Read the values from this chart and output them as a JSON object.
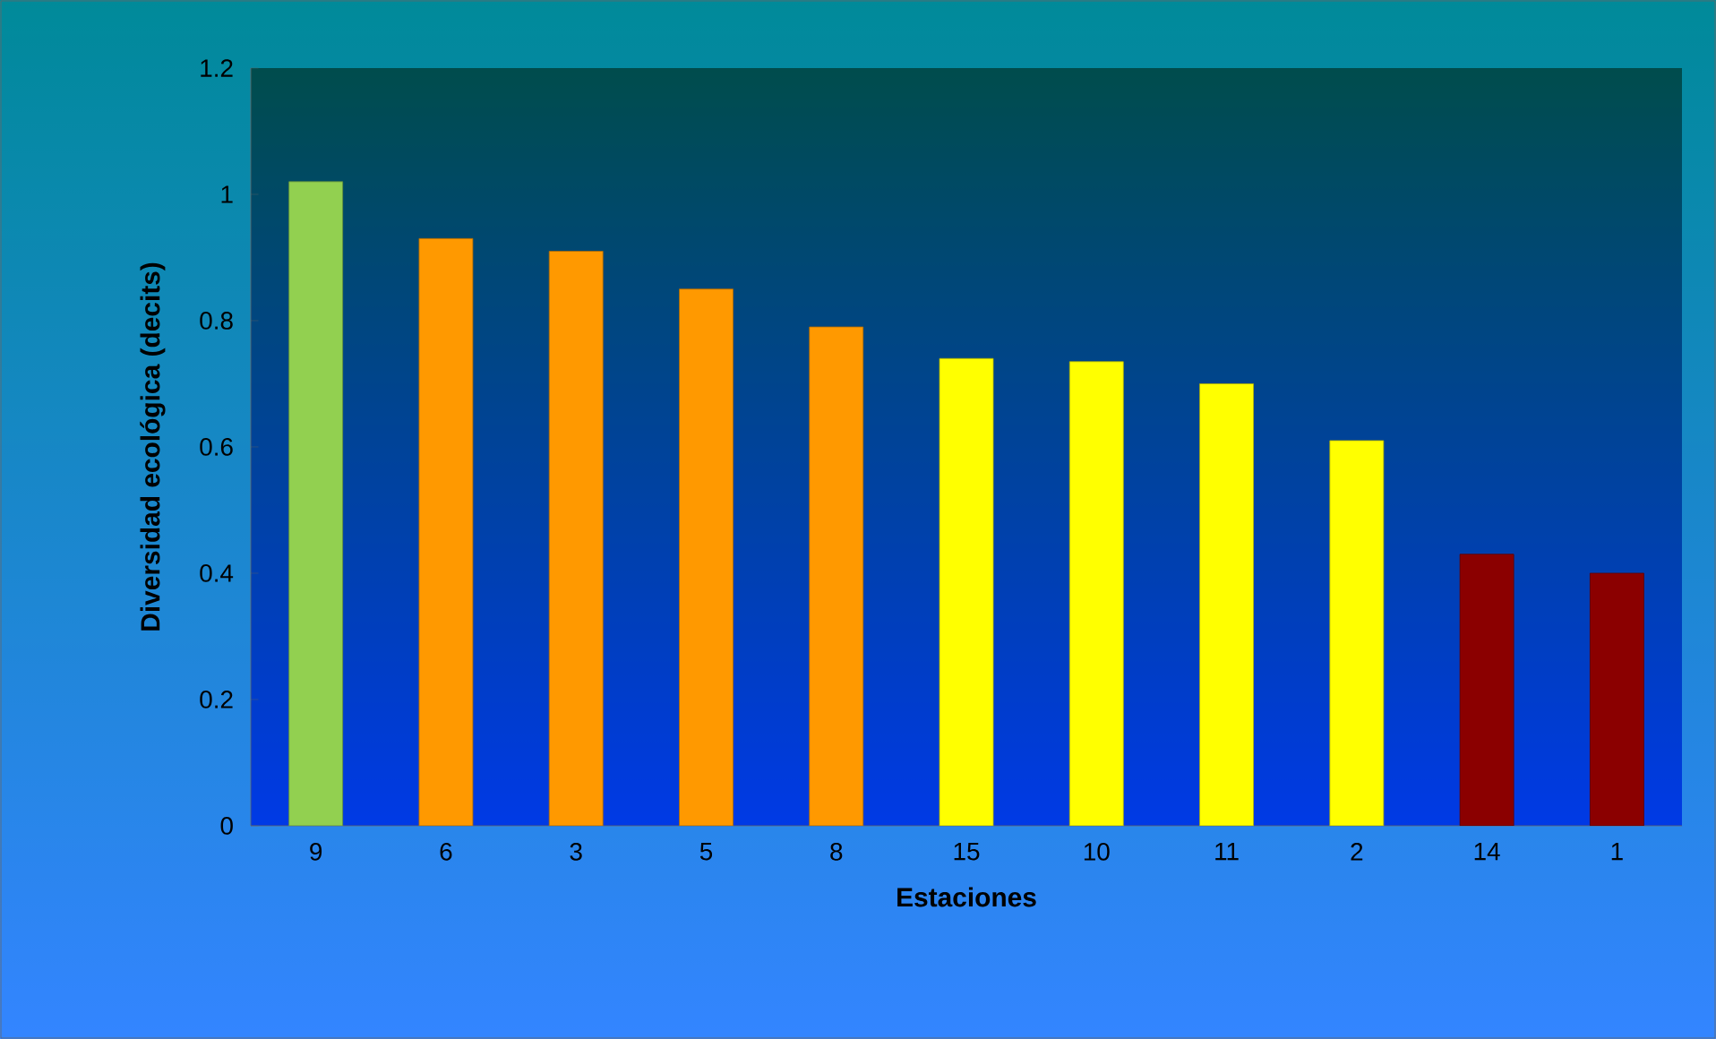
{
  "chart_data": {
    "type": "bar",
    "xlabel": "Estaciones",
    "ylabel": "Diversidad ecológica (decits)",
    "categories": [
      "9",
      "6",
      "3",
      "5",
      "8",
      "15",
      "10",
      "11",
      "2",
      "14",
      "1"
    ],
    "values": [
      1.02,
      0.93,
      0.91,
      0.85,
      0.79,
      0.74,
      0.735,
      0.7,
      0.61,
      0.43,
      0.4
    ],
    "colors": [
      "#92d050",
      "#ff9900",
      "#ff9900",
      "#ff9900",
      "#ff9900",
      "#ffff00",
      "#ffff00",
      "#ffff00",
      "#ffff00",
      "#8b0000",
      "#8b0000"
    ],
    "ylim": [
      0,
      1.2
    ],
    "yticks": [
      0,
      0.2,
      0.4,
      0.6,
      0.8,
      1,
      1.2
    ],
    "grid": false
  }
}
